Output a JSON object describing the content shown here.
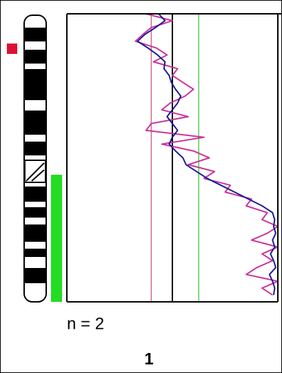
{
  "chart_data": {
    "type": "line",
    "orientation": "vertical",
    "x": [
      0,
      1,
      2,
      3,
      4,
      5,
      6,
      7,
      8,
      9,
      10,
      11,
      12,
      13,
      14,
      15,
      16,
      17,
      18,
      19,
      20,
      21,
      22,
      23,
      24,
      25,
      26,
      27,
      28,
      29,
      30,
      31,
      32,
      33,
      34,
      35,
      36,
      37,
      38,
      39,
      40,
      41
    ],
    "xlim": [
      0,
      42
    ],
    "ylim": [
      0,
      2
    ],
    "series": [
      {
        "color": "#cc3399",
        "values": [
          0.75,
          1.0,
          0.8,
          0.72,
          0.65,
          0.85,
          0.95,
          0.82,
          1.05,
          1.0,
          1.1,
          1.2,
          1.12,
          0.98,
          0.9,
          1.15,
          0.8,
          0.75,
          1.3,
          0.9,
          1.2,
          1.35,
          1.15,
          1.4,
          1.3,
          1.55,
          1.5,
          1.75,
          1.7,
          1.9,
          1.85,
          2.0,
          1.9,
          1.75,
          2.0,
          1.85,
          1.95,
          1.8,
          1.7,
          2.0,
          1.85,
          1.95
        ]
      },
      {
        "color": "#1a1a99",
        "values": [
          0.87,
          0.93,
          0.84,
          0.74,
          0.67,
          0.77,
          0.86,
          0.93,
          0.92,
          0.97,
          0.99,
          1.03,
          1.08,
          1.05,
          1.0,
          0.95,
          1.0,
          1.05,
          1.0,
          0.97,
          1.03,
          1.1,
          1.13,
          1.23,
          1.33,
          1.46,
          1.59,
          1.72,
          1.85,
          1.95,
          1.97,
          1.96,
          1.98,
          1.95,
          1.97,
          1.93,
          1.96,
          1.98,
          1.92,
          1.95,
          1.97,
          1.96
        ]
      }
    ],
    "lines": [
      {
        "value": 0.8,
        "color": "#cc6688"
      },
      {
        "value": 1,
        "color": "#000000"
      },
      {
        "value": 1.25,
        "color": "#55cc55"
      }
    ],
    "annotation": "n = 2",
    "label": "1"
  }
}
